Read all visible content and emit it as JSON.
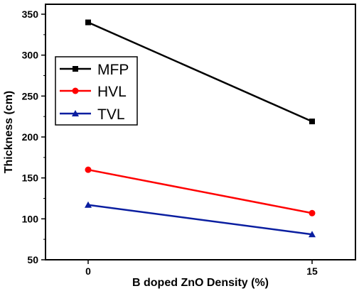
{
  "chart_data": {
    "type": "line",
    "xlabel": "B doped ZnO Density (%)",
    "ylabel": "Thickness (cm)",
    "categories": [
      "0",
      "15"
    ],
    "x": [
      0,
      15
    ],
    "xlim": [
      0,
      15
    ],
    "ylim": [
      50,
      350
    ],
    "yticks": [
      50,
      100,
      150,
      200,
      250,
      300,
      350
    ],
    "xticks": [
      0,
      15
    ],
    "legend_position": "upper-left",
    "grid": false,
    "series": [
      {
        "name": "MFP",
        "values": [
          340,
          219
        ],
        "color": "#000000",
        "marker": "square"
      },
      {
        "name": "HVL",
        "values": [
          160,
          107
        ],
        "color": "#ff0000",
        "marker": "circle"
      },
      {
        "name": "TVL",
        "values": [
          117,
          81
        ],
        "color": "#0a1ea0",
        "marker": "triangle"
      }
    ]
  }
}
